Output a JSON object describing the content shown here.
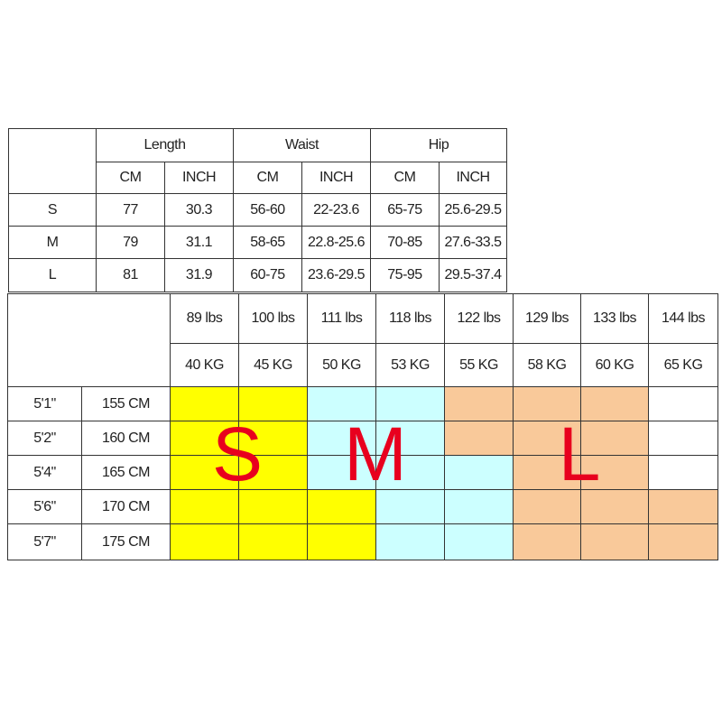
{
  "measurements": {
    "groups": [
      "Length",
      "Waist",
      "Hip"
    ],
    "units": [
      "CM",
      "INCH",
      "CM",
      "INCH",
      "CM",
      "INCH"
    ],
    "rows": [
      {
        "size": "S",
        "values": [
          "77",
          "30.3",
          "56-60",
          "22-23.6",
          "65-75",
          "25.6-29.5"
        ]
      },
      {
        "size": "M",
        "values": [
          "79",
          "31.1",
          "58-65",
          "22.8-25.6",
          "70-85",
          "27.6-33.5"
        ]
      },
      {
        "size": "L",
        "values": [
          "81",
          "31.9",
          "60-75",
          "23.6-29.5",
          "75-95",
          "29.5-37.4"
        ]
      }
    ]
  },
  "fit_chart": {
    "weights_lbs": [
      "89 lbs",
      "100 lbs",
      "111 lbs",
      "118 lbs",
      "122 lbs",
      "129 lbs",
      "133 lbs",
      "144 lbs"
    ],
    "weights_kg": [
      "40 KG",
      "45 KG",
      "50 KG",
      "53 KG",
      "55 KG",
      "58 KG",
      "60 KG",
      "65 KG"
    ],
    "heights": [
      {
        "ft": "5'1\"",
        "cm": "155 CM",
        "sizes": [
          "S",
          "S",
          "M",
          "M",
          "L",
          "L",
          "L",
          ""
        ]
      },
      {
        "ft": "5'2\"",
        "cm": "160 CM",
        "sizes": [
          "S",
          "S",
          "M",
          "M",
          "L",
          "L",
          "L",
          ""
        ]
      },
      {
        "ft": "5'4\"",
        "cm": "165 CM",
        "sizes": [
          "S",
          "S",
          "M",
          "M",
          "M",
          "L",
          "L",
          ""
        ]
      },
      {
        "ft": "5'6\"",
        "cm": "170 CM",
        "sizes": [
          "S",
          "S",
          "S",
          "M",
          "M",
          "L",
          "L",
          "L"
        ]
      },
      {
        "ft": "5'7\"",
        "cm": "175 CM",
        "sizes": [
          "S",
          "S",
          "S",
          "M",
          "M",
          "L",
          "L",
          "L"
        ]
      }
    ],
    "size_labels": [
      "S",
      "M",
      "L"
    ],
    "colors": {
      "S": "#ffff00",
      "M": "#ccffff",
      "L": "#f9c99a",
      "": "#ffffff",
      "label": "#e8001e"
    }
  }
}
